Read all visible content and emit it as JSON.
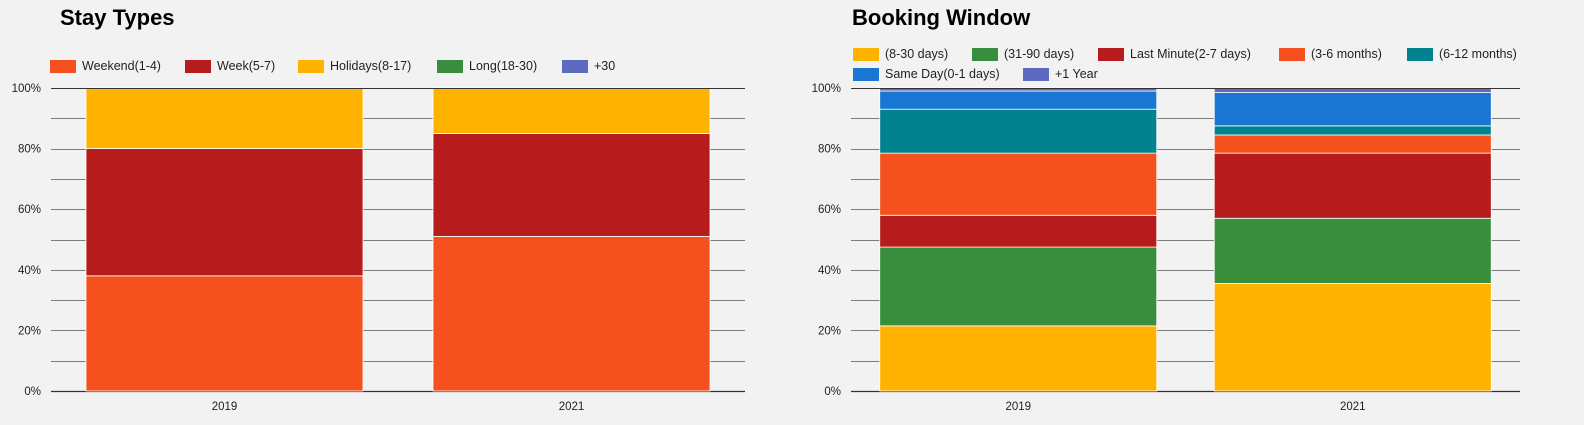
{
  "colors": {
    "Weekend(1-4)": "#f4511e",
    "Week(5-7)": "#b71c1c",
    "Holidays(8-17)": "#ffb300",
    "Long(18-30)": "#388e3c",
    "+30": "#5c6bc0",
    "(8-30 days)": "#ffb300",
    "(31-90 days)": "#388e3c",
    "Last Minute(2-7 days)": "#b71c1c",
    "(3-6 months)": "#f4511e",
    "(6-12 months)": "#00838f",
    "Same Day(0-1 days)": "#1976d2",
    "+1 Year": "#5c6bc0"
  },
  "chart_data": [
    {
      "type": "bar",
      "stacked": "percent",
      "title": "Stay Types",
      "categories": [
        "2019",
        "2021"
      ],
      "y_ticks": [
        "0%",
        "20%",
        "40%",
        "60%",
        "80%",
        "100%"
      ],
      "ylim": [
        0,
        100
      ],
      "grid": true,
      "legend_position": "top",
      "series": [
        {
          "name": "Weekend(1-4)",
          "values": [
            38,
            51
          ]
        },
        {
          "name": "Week(5-7)",
          "values": [
            42,
            34
          ]
        },
        {
          "name": "Holidays(8-17)",
          "values": [
            20,
            15
          ]
        },
        {
          "name": "Long(18-30)",
          "values": [
            0,
            0
          ]
        },
        {
          "name": "+30",
          "values": [
            0,
            0
          ]
        }
      ]
    },
    {
      "type": "bar",
      "stacked": "percent",
      "title": "Booking Window",
      "categories": [
        "2019",
        "2021"
      ],
      "y_ticks": [
        "0%",
        "20%",
        "40%",
        "60%",
        "80%",
        "100%"
      ],
      "ylim": [
        0,
        100
      ],
      "grid": true,
      "legend_position": "top",
      "series": [
        {
          "name": "(8-30 days)",
          "values": [
            21.5,
            35.5
          ]
        },
        {
          "name": "(31-90 days)",
          "values": [
            26,
            21.5
          ]
        },
        {
          "name": "Last Minute(2-7 days)",
          "values": [
            10.5,
            21.5
          ]
        },
        {
          "name": "(3-6 months)",
          "values": [
            20.5,
            6
          ]
        },
        {
          "name": "(6-12 months)",
          "values": [
            14.5,
            3
          ]
        },
        {
          "name": "Same Day(0-1 days)",
          "values": [
            6,
            11
          ]
        },
        {
          "name": "+1 Year",
          "values": [
            1,
            1.5
          ]
        }
      ]
    }
  ]
}
